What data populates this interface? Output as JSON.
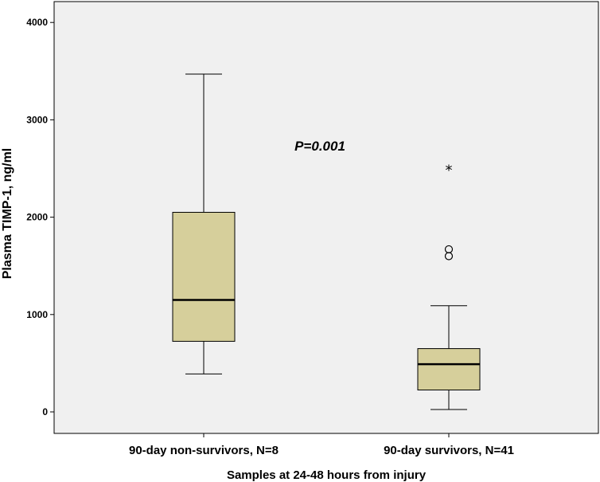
{
  "chart_data": {
    "type": "box",
    "title": "",
    "xlabel": "Samples at 24-48 hours from injury",
    "ylabel": "Plasma TIMP-1, ng/ml",
    "ylim": [
      -220,
      4230
    ],
    "yticks": [
      0,
      1000,
      2000,
      3000,
      4000
    ],
    "ytick_labels": [
      "0",
      "1000",
      "2000",
      "3000",
      "4000"
    ],
    "grid": false,
    "annotation": "P=0.001",
    "box_color": "#d6cf9b",
    "plot_background": "#f0f0f0",
    "categories": [
      "90-day non-survivors, N=8",
      "90-day survivors, N=41"
    ],
    "boxes": [
      {
        "category": "90-day non-survivors, N=8",
        "whisker_low": 390,
        "q1": 725,
        "median": 1150,
        "q3": 2050,
        "whisker_high": 3470,
        "outliers": [],
        "extremes": []
      },
      {
        "category": "90-day survivors, N=41",
        "whisker_low": 25,
        "q1": 225,
        "median": 490,
        "q3": 650,
        "whisker_high": 1090,
        "outliers": [
          1600,
          1670
        ],
        "extremes": [
          2500
        ]
      }
    ]
  }
}
